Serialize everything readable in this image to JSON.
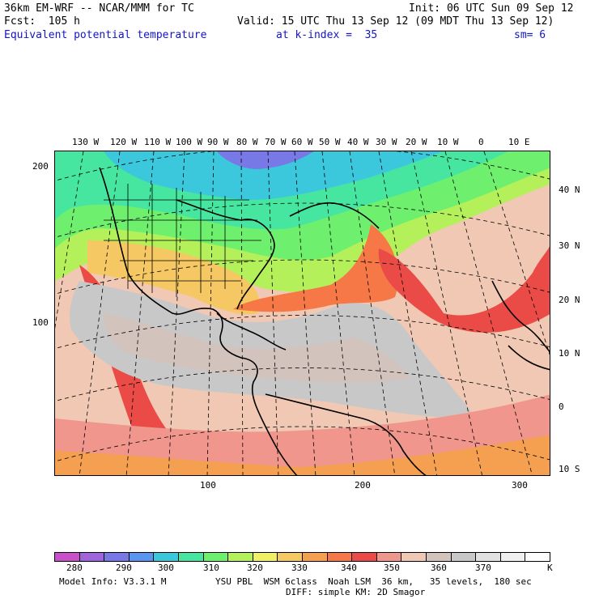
{
  "header": {
    "model_title": "36km EM-WRF -- NCAR/MMM for TC",
    "init": "Init: 06 UTC Sun 09 Sep 12",
    "forecast": "Fcst:  105 h",
    "valid": "Valid: 15 UTC Thu 13 Sep 12 (09 MDT Thu 13 Sep 12)",
    "field_name": "Equivalent potential temperature",
    "level": "at k-index =  35",
    "smoothing": "sm= 6"
  },
  "map": {
    "top_longitude_labels": [
      "130 W",
      "120 W",
      "110 W",
      "100 W",
      "90 W",
      "80 W",
      "70 W",
      "60 W",
      "50 W",
      "40 W",
      "30 W",
      "20 W",
      "10 W",
      "0",
      "10 E"
    ],
    "right_latitude_labels": [
      "40 N",
      "30 N",
      "20 N",
      "10 N",
      "0",
      "10 S"
    ],
    "left_grid_labels": [
      "200",
      "100"
    ],
    "bottom_grid_labels": [
      "100",
      "200",
      "300"
    ]
  },
  "colorbar": {
    "unit": "K",
    "labels": [
      "280",
      "290",
      "300",
      "310",
      "320",
      "330",
      "340",
      "350",
      "360",
      "370"
    ],
    "colors": [
      "#c850c8",
      "#a064dc",
      "#7878e6",
      "#5a96f0",
      "#3cc8dc",
      "#46e6a0",
      "#6ef06e",
      "#b4f05a",
      "#f0f064",
      "#f5c864",
      "#f5a050",
      "#f57846",
      "#eb4b46",
      "#f0968c",
      "#f0c8b4",
      "#d2c3bd",
      "#c8c8c8",
      "#e1e1e1",
      "#f0f0f0",
      "#ffffff"
    ]
  },
  "footer": {
    "model_info": "Model Info: V3.3.1 M",
    "physics": "YSU PBL  WSM 6class  Noah LSM  36 km,   35 levels,  180 sec",
    "diffusion": "DIFF: simple KM: 2D Smagor"
  }
}
